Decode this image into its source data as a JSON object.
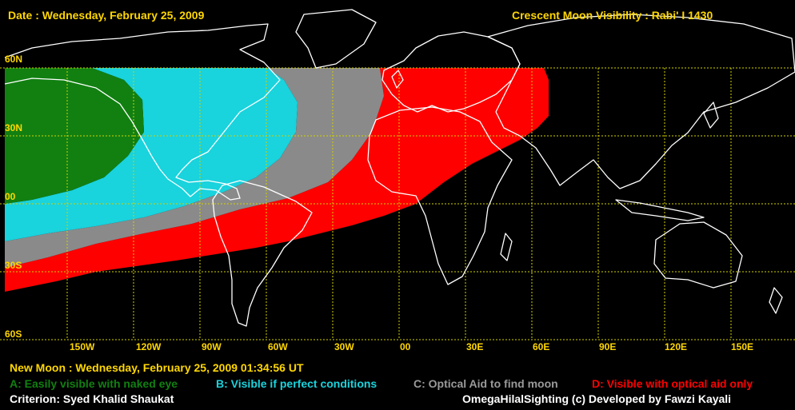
{
  "header": {
    "date": "Date : Wednesday, February 25, 2009",
    "title": "Crescent Moon Visibility : Rabi' I  1430"
  },
  "lat_labels": [
    "60N",
    "30N",
    "00",
    "30S",
    "60S"
  ],
  "lon_labels": [
    "150W",
    "120W",
    "90W",
    "60W",
    "30W",
    "00",
    "30E",
    "60E",
    "90E",
    "120E",
    "150E"
  ],
  "new_moon": "New Moon : Wednesday, February 25, 2009  01:34:56  UT",
  "legend": {
    "a": "A: Easily visible with naked eye",
    "b": "B: Visible if perfect conditions",
    "c": "C: Optical Aid to find moon",
    "d": "D: Visible with optical aid only"
  },
  "criterion": "Criterion: Syed Khalid Shaukat",
  "credit": "OmegaHilalSighting  (c)  Developed by Fawzi Kayali",
  "colors": {
    "zone_a": "#118011",
    "zone_b": "#19d3dd",
    "zone_c": "#8a8a8a",
    "zone_d": "#ff0000",
    "grid": "#d2d200",
    "coast": "#ffffff",
    "label": "#ffd700"
  }
}
